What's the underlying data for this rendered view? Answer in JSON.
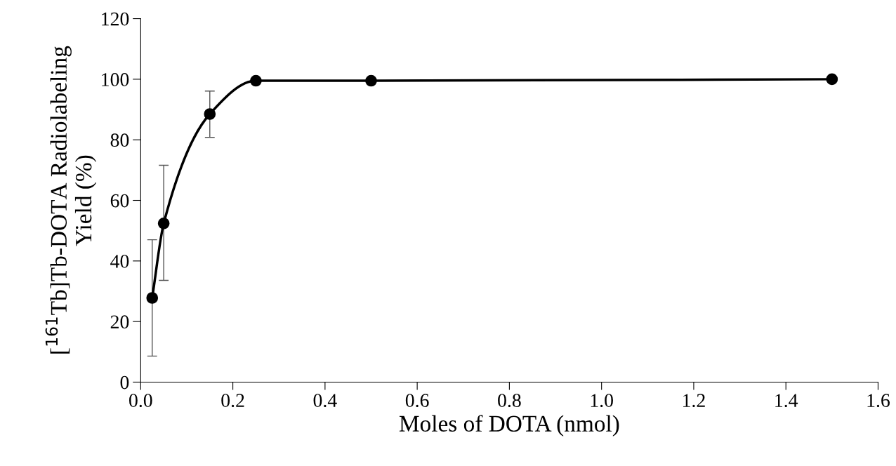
{
  "chart_data": {
    "type": "line",
    "xlabel": "Moles of DOTA (nmol)",
    "ylabel": "[$^{161}$Tb]Tb-DOTA Radiolabeling\nYield (%)",
    "x": [
      0.025,
      0.05,
      0.15,
      0.25,
      0.5,
      1.5
    ],
    "series": [
      {
        "color": "#000000",
        "values": [
          27.8,
          52.4,
          88.5,
          99.5,
          99.5,
          100
        ],
        "errors": [
          [
            8.6,
            47
          ],
          [
            33.6,
            71.6
          ],
          [
            80.8,
            96.1
          ],
          null,
          null,
          null
        ]
      }
    ],
    "marker": "circle",
    "line_style": "solid",
    "grid": false,
    "xlim": [
      0.0,
      1.6
    ],
    "xticks": [
      {
        "value": 0,
        "label": "0.0"
      },
      {
        "value": 0.2,
        "label": "0.2"
      },
      {
        "value": 0.4,
        "label": "0.4"
      },
      {
        "value": 0.6,
        "label": "0.6"
      },
      {
        "value": 0.8,
        "label": "0.8"
      },
      {
        "value": 1.0,
        "label": "1.0"
      },
      {
        "value": 1.2,
        "label": "1.2"
      },
      {
        "value": 1.4,
        "label": "1.4"
      },
      {
        "value": 1.6,
        "label": "1.6"
      }
    ],
    "ylim": [
      0,
      120
    ],
    "yticks": [
      0,
      20,
      40,
      60,
      80,
      100,
      120
    ]
  }
}
